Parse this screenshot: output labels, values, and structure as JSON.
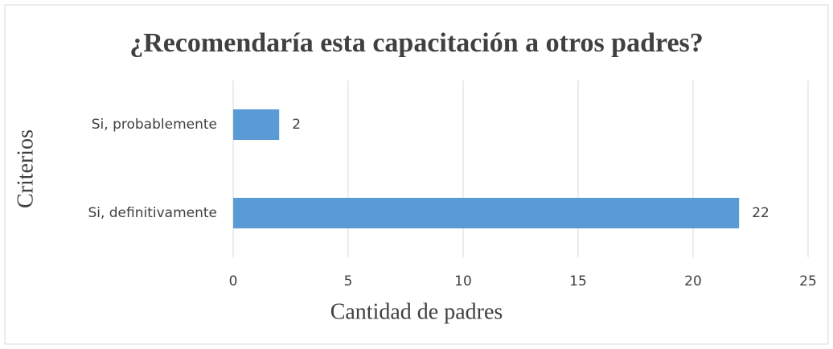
{
  "chart_data": {
    "type": "bar",
    "orientation": "horizontal",
    "title": "¿Recomendaría esta capacitación a otros padres?",
    "x_label": "Cantidad de padres",
    "y_label": "Criterios",
    "categories": [
      "Si, probablemente",
      "Si, definitivamente"
    ],
    "values": [
      2,
      22
    ],
    "color": "#5b9bd5",
    "xlim": [
      0,
      25
    ],
    "xticks": [
      0,
      5,
      10,
      15,
      20,
      25
    ],
    "grid": true
  }
}
